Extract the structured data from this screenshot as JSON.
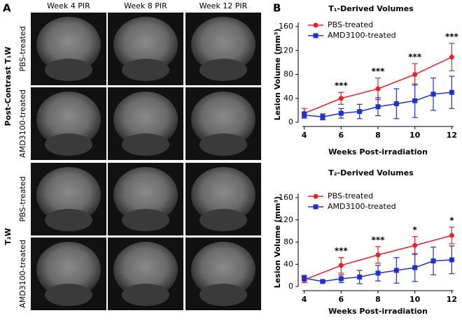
{
  "panel_a": {
    "label": "A",
    "columns": [
      "Week 4 PIR",
      "Week 8 PIR",
      "Week 12 PIR"
    ],
    "groups": [
      {
        "label": "Post-Contrast T₁W",
        "rows": [
          "PBS-treated",
          "AMD3100-treated"
        ]
      },
      {
        "label": "T₂W",
        "rows": [
          "PBS-treated",
          "AMD3100-treated"
        ]
      }
    ]
  },
  "chart_data": [
    {
      "type": "line",
      "panel": "B",
      "title": "T₁-Derived Volumes",
      "x_label": "Weeks Post-irradiation",
      "y_label": "Lesion Volume (mm³)",
      "xlim": [
        3.9,
        12.1
      ],
      "xticks": [
        4,
        6,
        8,
        10,
        12
      ],
      "ylim": [
        0,
        160
      ],
      "yticks": [
        0,
        40,
        80,
        120,
        160
      ],
      "legend": "upper left",
      "series": [
        {
          "name": "PBS-treated",
          "color": "#e8202a",
          "marker": "circle",
          "x": [
            4,
            6,
            8,
            10,
            12
          ],
          "values": [
            15,
            40,
            56,
            80,
            109
          ],
          "errors": [
            8,
            10,
            18,
            18,
            23
          ],
          "significance": [
            null,
            "***",
            "***",
            "***",
            "***"
          ]
        },
        {
          "name": "AMD3100-treated",
          "color": "#1f2fd0",
          "marker": "square",
          "x": [
            4,
            5,
            6,
            7,
            8,
            9,
            10,
            11,
            12
          ],
          "values": [
            12,
            9,
            15,
            18,
            26,
            31,
            36,
            47,
            50
          ],
          "errors": [
            5,
            5,
            8,
            12,
            15,
            25,
            28,
            27,
            27
          ]
        }
      ]
    },
    {
      "type": "line",
      "title": "T₂-Derived Volumes",
      "x_label": "Weeks Post-irradiation",
      "y_label": "Lesion Volume (mm³)",
      "xlim": [
        3.9,
        12.1
      ],
      "xticks": [
        4,
        6,
        8,
        10,
        12
      ],
      "ylim": [
        0,
        160
      ],
      "yticks": [
        0,
        40,
        80,
        120,
        160
      ],
      "legend": "upper left",
      "series": [
        {
          "name": "PBS-treated",
          "color": "#e8202a",
          "marker": "circle",
          "x": [
            4,
            6,
            8,
            10,
            12
          ],
          "values": [
            12,
            38,
            57,
            74,
            92
          ],
          "errors": [
            5,
            14,
            15,
            16,
            15
          ],
          "significance": [
            null,
            "***",
            "***",
            "*",
            "*"
          ]
        },
        {
          "name": "AMD3100-treated",
          "color": "#1f2fd0",
          "marker": "square",
          "x": [
            4,
            5,
            6,
            7,
            8,
            9,
            10,
            11,
            12
          ],
          "values": [
            15,
            9,
            14,
            17,
            24,
            29,
            34,
            46,
            48
          ],
          "errors": [
            5,
            2,
            7,
            12,
            14,
            23,
            25,
            25,
            25
          ]
        }
      ]
    }
  ]
}
